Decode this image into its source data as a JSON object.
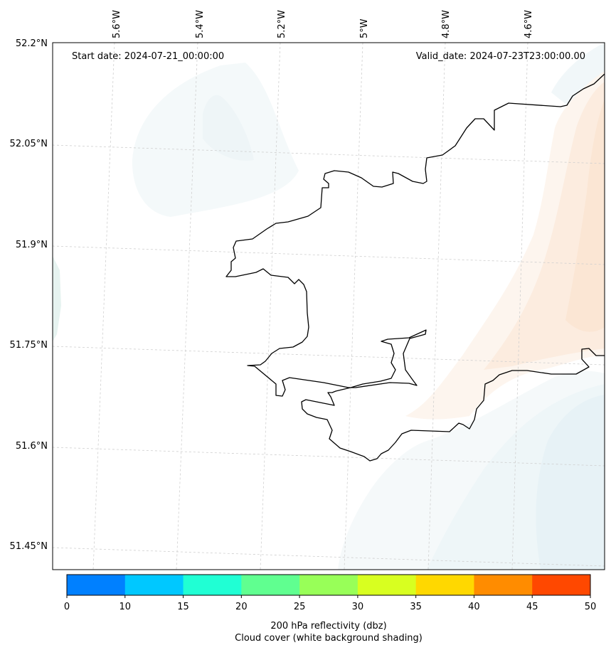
{
  "header": {
    "start_date": "Start date: 2024-07-21_00:00:00",
    "valid_date": "Valid_date: 2024-07-23T23:00:00.00"
  },
  "longitude_labels": [
    "5.6°W",
    "5.4°W",
    "5.2°W",
    "5°W",
    "4.8°W",
    "4.6°W"
  ],
  "latitude_labels": [
    "52.2°N",
    "52.05°N",
    "51.9°N",
    "51.75°N",
    "51.6°N",
    "51.45°N"
  ],
  "colorbar": {
    "ticks": [
      "0",
      "10",
      "15",
      "20",
      "25",
      "30",
      "35",
      "40",
      "45",
      "50"
    ],
    "colors": [
      "#0080ff",
      "#00c8ff",
      "#20ffd4",
      "#60ff90",
      "#98ff58",
      "#d8ff20",
      "#ffd800",
      "#ff8c00",
      "#ff4800"
    ],
    "label_line1": "200 hPa reflectivity (dbz)",
    "label_line2": "Cloud cover (white background shading)"
  },
  "colors": {
    "coastline": "#000000",
    "cloud_light": "#eef6f8",
    "warm_light": "#fdf1e6",
    "warm_mid": "#fbe6d4"
  }
}
